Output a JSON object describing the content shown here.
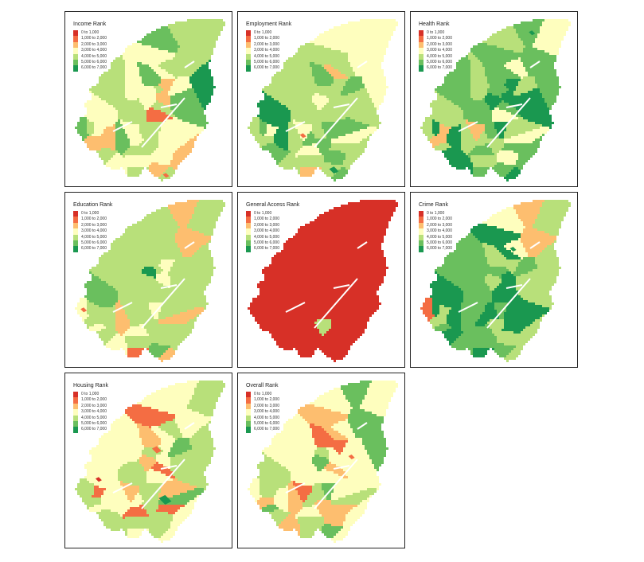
{
  "legend": {
    "classes": [
      {
        "label": "0 to 1,000",
        "color": "#d73027"
      },
      {
        "label": "1,000 to 2,000",
        "color": "#f46d43"
      },
      {
        "label": "2,000 to 3,000",
        "color": "#fdbe6f"
      },
      {
        "label": "3,000 to 4,000",
        "color": "#fefebe"
      },
      {
        "label": "4,000 to 5,000",
        "color": "#b8e07a"
      },
      {
        "label": "5,000 to 6,000",
        "color": "#6abf5e"
      },
      {
        "label": "6,000 to 7,000",
        "color": "#1a9850"
      }
    ]
  },
  "panels": [
    {
      "title": "Income Rank",
      "weights": [
        0,
        3,
        18,
        30,
        32,
        15,
        2
      ],
      "accents": [
        1
      ]
    },
    {
      "title": "Employment Rank",
      "weights": [
        0,
        3,
        12,
        18,
        38,
        20,
        9
      ],
      "accents": [
        1,
        6
      ]
    },
    {
      "title": "Health Rank",
      "weights": [
        0,
        0,
        4,
        12,
        38,
        26,
        20
      ],
      "accents": [
        6
      ]
    },
    {
      "title": "Education Rank",
      "weights": [
        1,
        3,
        8,
        30,
        42,
        14,
        2
      ],
      "accents": [
        1
      ]
    },
    {
      "title": "General Access Rank",
      "weights": [
        96,
        0,
        2,
        1,
        1,
        0,
        0
      ],
      "accents": []
    },
    {
      "title": "Crime Rank",
      "weights": [
        0,
        1,
        6,
        10,
        25,
        28,
        30
      ],
      "accents": [
        6
      ]
    },
    {
      "title": "Housing Rank",
      "weights": [
        2,
        10,
        12,
        40,
        28,
        6,
        2
      ],
      "accents": [
        0,
        1,
        6
      ]
    },
    {
      "title": "Overall Rank",
      "weights": [
        0,
        4,
        30,
        46,
        16,
        4,
        0
      ],
      "accents": [
        1
      ]
    }
  ]
}
